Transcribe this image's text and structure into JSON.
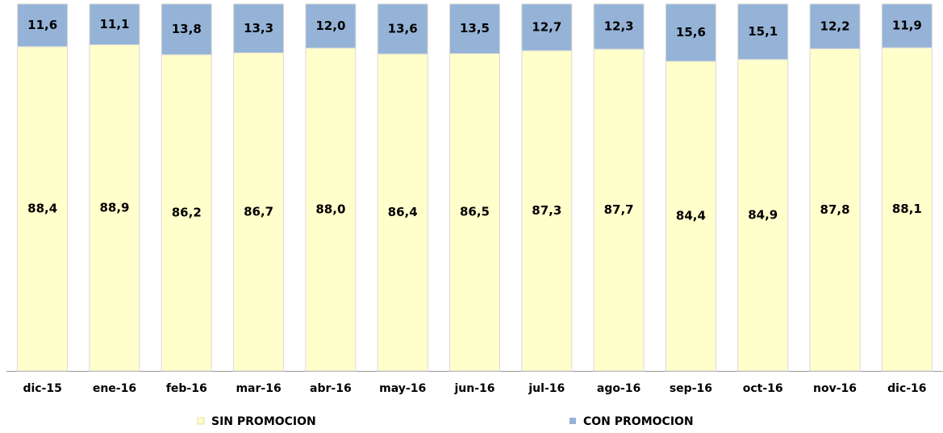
{
  "chart_data": {
    "type": "bar",
    "stacked": true,
    "categories": [
      "dic-15",
      "ene-16",
      "feb-16",
      "mar-16",
      "abr-16",
      "may-16",
      "jun-16",
      "jul-16",
      "ago-16",
      "sep-16",
      "oct-16",
      "nov-16",
      "dic-16"
    ],
    "series": [
      {
        "name": "SIN PROMOCION",
        "color": "#ffffcc",
        "values": [
          88.4,
          88.9,
          86.2,
          86.7,
          88.0,
          86.4,
          86.5,
          87.3,
          87.7,
          84.4,
          84.9,
          87.8,
          88.1
        ],
        "value_labels": [
          "88,4",
          "88,9",
          "86,2",
          "86,7",
          "88,0",
          "86,4",
          "86,5",
          "87,3",
          "87,7",
          "84,4",
          "84,9",
          "87,8",
          "88,1"
        ]
      },
      {
        "name": "CON PROMOCION",
        "color": "#95b3d7",
        "values": [
          11.6,
          11.1,
          13.8,
          13.3,
          12.0,
          13.6,
          13.5,
          12.7,
          12.3,
          15.6,
          15.1,
          12.2,
          11.9
        ],
        "value_labels": [
          "11,6",
          "11,1",
          "13,8",
          "13,3",
          "12,0",
          "13,6",
          "13,5",
          "12,7",
          "12,3",
          "15,6",
          "15,1",
          "12,2",
          "11,9"
        ]
      }
    ],
    "ylim": [
      0,
      100
    ],
    "legend": "bottom"
  }
}
